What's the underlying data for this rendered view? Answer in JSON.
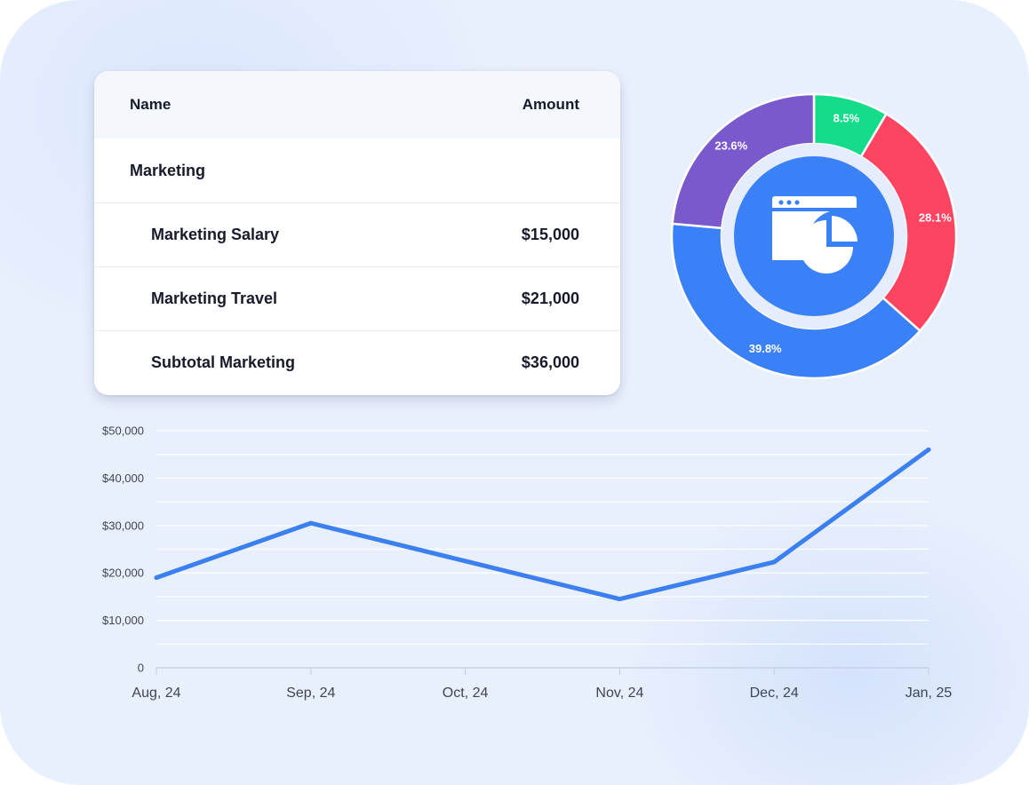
{
  "table": {
    "headers": {
      "name": "Name",
      "amount": "Amount"
    },
    "group": "Marketing",
    "rows": [
      {
        "name": "Marketing Salary",
        "amount": "$15,000"
      },
      {
        "name": "Marketing Travel",
        "amount": "$21,000"
      },
      {
        "name": "Subtotal Marketing",
        "amount": "$36,000"
      }
    ]
  },
  "colors": {
    "line": "#3b7ff0",
    "donut_green": "#15dc8b",
    "donut_red": "#fd4461",
    "donut_blue": "#3a80f7",
    "donut_purple": "#7a59cd"
  },
  "icon": "dashboard-pie-chart-icon",
  "chart_data": [
    {
      "type": "pie",
      "variant": "donut",
      "slices": [
        {
          "label": "8.5%",
          "value": 8.5,
          "color": "#15dc8b"
        },
        {
          "label": "28.1%",
          "value": 28.1,
          "color": "#fd4461"
        },
        {
          "label": "39.8%",
          "value": 39.8,
          "color": "#3a80f7"
        },
        {
          "label": "23.6%",
          "value": 23.6,
          "color": "#7a59cd"
        }
      ]
    },
    {
      "type": "line",
      "categories": [
        "Aug, 24",
        "Sep, 24",
        "Oct, 24",
        "Nov, 24",
        "Dec, 24",
        "Jan, 25"
      ],
      "values": [
        19000,
        30500,
        22500,
        14500,
        22300,
        46000
      ],
      "ylim": [
        0,
        50000
      ],
      "yticks": [
        "0",
        "$10,000",
        "$20,000",
        "$30,000",
        "$40,000",
        "$50,000"
      ],
      "grid": true
    }
  ]
}
